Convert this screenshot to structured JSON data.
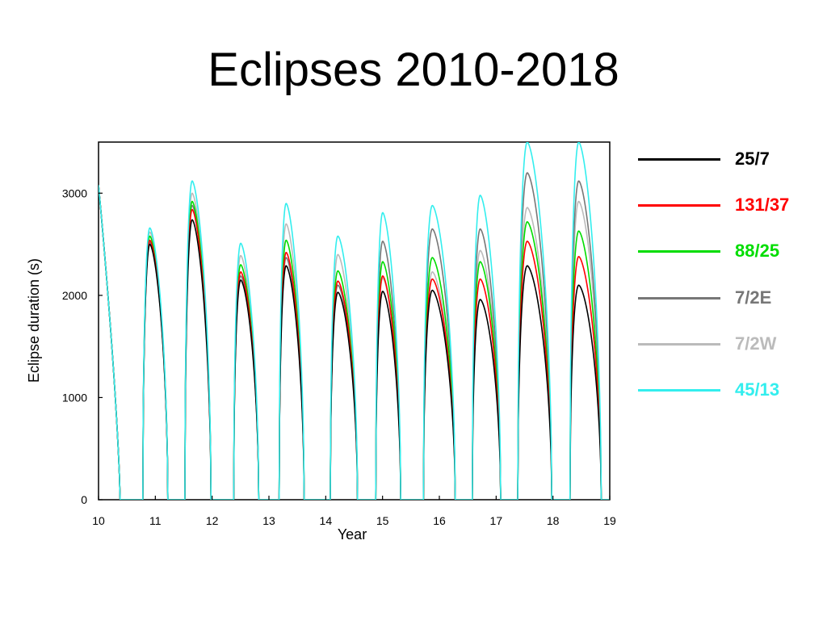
{
  "slide": {
    "title": "Eclipses 2010-2018"
  },
  "chart_data": {
    "type": "line",
    "title": "Eclipses 2010-2018",
    "xlabel": "Year",
    "ylabel": "Eclipse duration (s)",
    "xlim": [
      10,
      19
    ],
    "ylim": [
      0,
      3500
    ],
    "x_ticks": [
      10,
      11,
      12,
      13,
      14,
      15,
      16,
      17,
      18,
      19
    ],
    "y_ticks": [
      0,
      1000,
      2000,
      3000
    ],
    "grid": false,
    "legend_position": "right",
    "seasons": [
      {
        "start": 10.0,
        "end": 10.38
      },
      {
        "start": 10.78,
        "end": 11.22
      },
      {
        "start": 11.52,
        "end": 11.98
      },
      {
        "start": 12.38,
        "end": 12.82
      },
      {
        "start": 13.18,
        "end": 13.62
      },
      {
        "start": 14.08,
        "end": 14.56
      },
      {
        "start": 14.88,
        "end": 15.32
      },
      {
        "start": 15.72,
        "end": 16.28
      },
      {
        "start": 16.58,
        "end": 17.08
      },
      {
        "start": 17.38,
        "end": 17.98
      },
      {
        "start": 18.3,
        "end": 18.85
      }
    ],
    "series": [
      {
        "name": "25/7",
        "color": "#000000",
        "peaks": [
          3080,
          2500,
          2740,
          2150,
          2290,
          2030,
          2040,
          2050,
          1960,
          2290,
          2100
        ]
      },
      {
        "name": "131/37",
        "color": "#ff0000",
        "peaks": [
          3080,
          2540,
          2840,
          2230,
          2420,
          2140,
          2190,
          2160,
          2160,
          2530,
          2380
        ]
      },
      {
        "name": "88/25",
        "color": "#00dd00",
        "peaks": [
          3080,
          2580,
          2920,
          2300,
          2540,
          2240,
          2330,
          2370,
          2330,
          2720,
          2630
        ]
      },
      {
        "name": "7/2E",
        "color": "#777777",
        "peaks": [
          3080,
          2520,
          2880,
          2190,
          2370,
          2100,
          2530,
          2650,
          2650,
          3200,
          3120
        ]
      },
      {
        "name": "7/2W",
        "color": "#bbbbbb",
        "peaks": [
          3080,
          2620,
          3000,
          2390,
          2700,
          2400,
          2170,
          2230,
          2440,
          2860,
          2920
        ]
      },
      {
        "name": "45/13",
        "color": "#33eeee",
        "peaks": [
          3080,
          2660,
          3120,
          2510,
          2900,
          2580,
          2810,
          2880,
          2980,
          3500,
          3500
        ]
      }
    ]
  }
}
